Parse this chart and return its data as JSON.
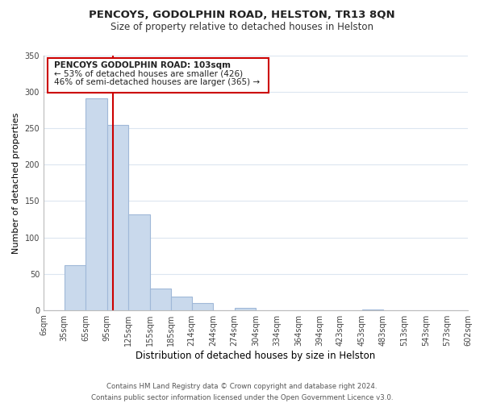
{
  "title": "PENCOYS, GODOLPHIN ROAD, HELSTON, TR13 8QN",
  "subtitle": "Size of property relative to detached houses in Helston",
  "xlabel": "Distribution of detached houses by size in Helston",
  "ylabel": "Number of detached properties",
  "bar_color": "#c9d9ec",
  "bar_edge_color": "#a0b8d8",
  "vline_color": "#cc0000",
  "bins": [
    6,
    35,
    65,
    95,
    125,
    155,
    185,
    214,
    244,
    274,
    304,
    334,
    364,
    394,
    423,
    453,
    483,
    513,
    543,
    573,
    602
  ],
  "counts": [
    0,
    62,
    291,
    255,
    132,
    30,
    18,
    10,
    0,
    3,
    0,
    0,
    0,
    0,
    0,
    1,
    0,
    0,
    0,
    0
  ],
  "tick_labels": [
    "6sqm",
    "35sqm",
    "65sqm",
    "95sqm",
    "125sqm",
    "155sqm",
    "185sqm",
    "214sqm",
    "244sqm",
    "274sqm",
    "304sqm",
    "334sqm",
    "364sqm",
    "394sqm",
    "423sqm",
    "453sqm",
    "483sqm",
    "513sqm",
    "543sqm",
    "573sqm",
    "602sqm"
  ],
  "ylim": [
    0,
    350
  ],
  "yticks": [
    0,
    50,
    100,
    150,
    200,
    250,
    300,
    350
  ],
  "vline_x": 103,
  "annotation_title": "PENCOYS GODOLPHIN ROAD: 103sqm",
  "annotation_line1": "← 53% of detached houses are smaller (426)",
  "annotation_line2": "46% of semi-detached houses are larger (365) →",
  "footer_line1": "Contains HM Land Registry data © Crown copyright and database right 2024.",
  "footer_line2": "Contains public sector information licensed under the Open Government Licence v3.0.",
  "background_color": "#ffffff",
  "grid_color": "#dce6f0"
}
